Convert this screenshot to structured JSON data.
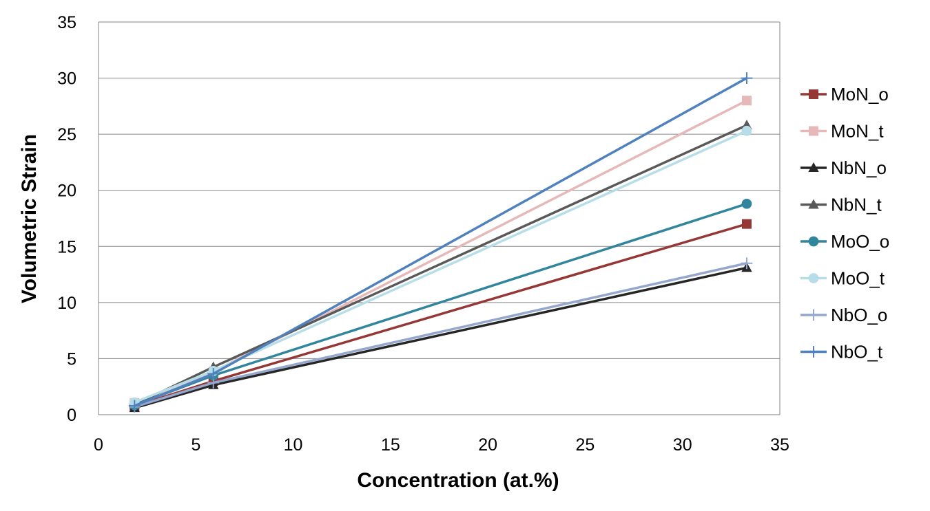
{
  "chart_data": {
    "type": "line",
    "title": "",
    "xlabel": "Concentration (at.%)",
    "ylabel": "Volumetric  Strain",
    "xlim": [
      0,
      35
    ],
    "ylim": [
      0,
      35
    ],
    "xticks": [
      0,
      5,
      10,
      15,
      20,
      25,
      30,
      35
    ],
    "yticks": [
      0,
      5,
      10,
      15,
      20,
      25,
      30,
      35
    ],
    "grid": "horizontal",
    "legend_position": "right",
    "series": [
      {
        "name": "MoN_o",
        "color": "#953735",
        "marker": "square",
        "x": [
          1.85,
          5.9,
          33.3
        ],
        "y": [
          0.75,
          3.0,
          17.0
        ]
      },
      {
        "name": "MoN_t",
        "color": "#E6B9B8",
        "marker": "square",
        "x": [
          1.85,
          5.9,
          33.3
        ],
        "y": [
          1.05,
          3.85,
          28.0
        ]
      },
      {
        "name": "NbN_o",
        "color": "#262626",
        "marker": "triangle",
        "x": [
          1.85,
          5.9,
          33.3
        ],
        "y": [
          0.6,
          2.65,
          13.1
        ]
      },
      {
        "name": "NbN_t",
        "color": "#595959",
        "marker": "triangle",
        "x": [
          1.85,
          5.9,
          33.3
        ],
        "y": [
          0.9,
          4.25,
          25.8
        ]
      },
      {
        "name": "MoO_o",
        "color": "#31859C",
        "marker": "circle",
        "x": [
          1.85,
          5.9,
          33.3
        ],
        "y": [
          0.85,
          3.5,
          18.8
        ]
      },
      {
        "name": "MoO_t",
        "color": "#B7DEE8",
        "marker": "circle",
        "x": [
          1.85,
          5.9,
          33.3
        ],
        "y": [
          1.1,
          3.9,
          25.3
        ]
      },
      {
        "name": "NbO_o",
        "color": "#95A7CC",
        "marker": "plus",
        "x": [
          1.85,
          5.9,
          33.3
        ],
        "y": [
          0.7,
          2.85,
          13.5
        ]
      },
      {
        "name": "NbO_t",
        "color": "#4F81BD",
        "marker": "plus",
        "x": [
          1.85,
          5.9,
          33.3
        ],
        "y": [
          0.8,
          3.65,
          30.0
        ]
      }
    ]
  }
}
